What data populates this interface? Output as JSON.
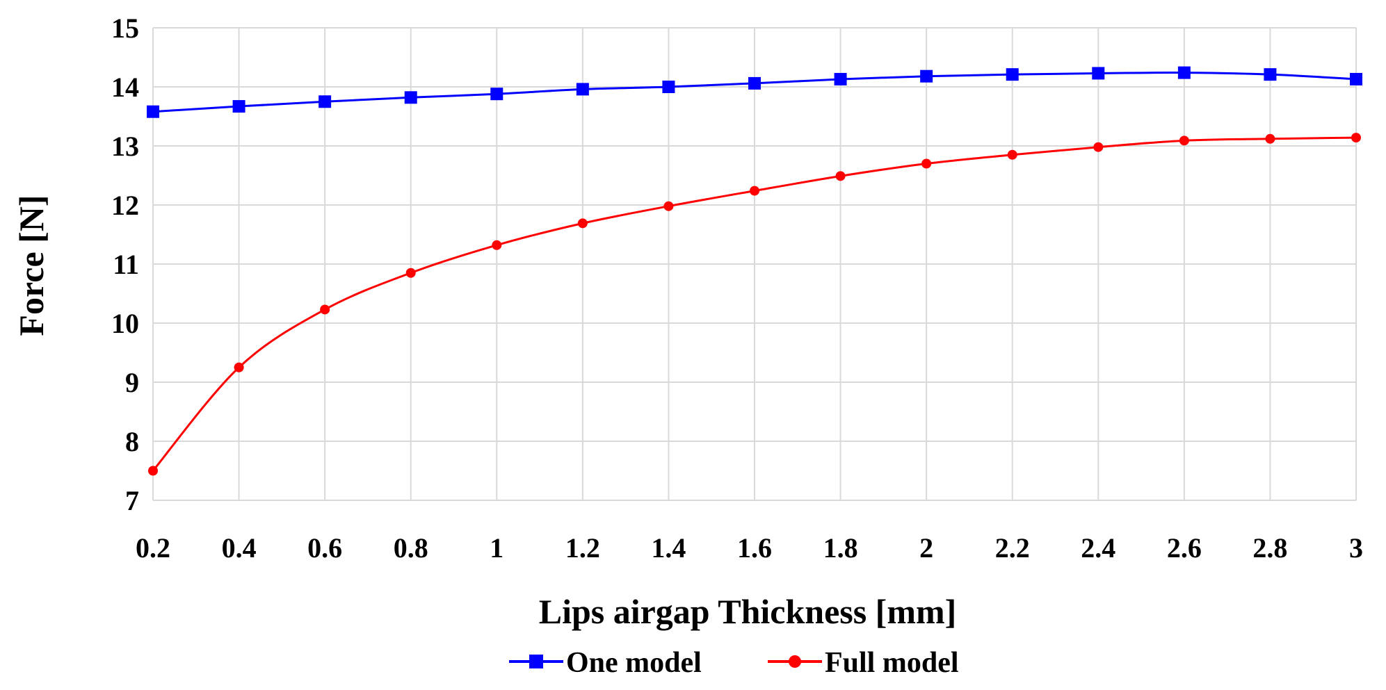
{
  "chart_data": {
    "type": "line",
    "title": "",
    "xlabel": "Lips airgap Thickness [mm]",
    "ylabel": "Force [N]",
    "x": [
      0.2,
      0.4,
      0.6,
      0.8,
      1.0,
      1.2,
      1.4,
      1.6,
      1.8,
      2.0,
      2.2,
      2.4,
      2.6,
      2.8,
      3.0
    ],
    "x_tick_labels": [
      "0.2",
      "0.4",
      "0.6",
      "0.8",
      "1",
      "1.2",
      "1.4",
      "1.6",
      "1.8",
      "2",
      "2.2",
      "2.4",
      "2.6",
      "2.8",
      "3"
    ],
    "y_tick_values": [
      7,
      8,
      9,
      10,
      11,
      12,
      13,
      14,
      15
    ],
    "y_tick_labels": [
      "7",
      "8",
      "9",
      "10",
      "11",
      "12",
      "13",
      "14",
      "15"
    ],
    "xlim": [
      0.2,
      3.0
    ],
    "ylim": [
      7,
      15
    ],
    "grid": true,
    "legend_position": "bottom",
    "series": [
      {
        "name": "One model",
        "color": "#0000ff",
        "marker": "square",
        "values": [
          13.58,
          13.67,
          13.75,
          13.82,
          13.88,
          13.96,
          14.0,
          14.06,
          14.13,
          14.18,
          14.21,
          14.23,
          14.24,
          14.21,
          14.13
        ]
      },
      {
        "name": "Full model",
        "color": "#ff0000",
        "marker": "circle",
        "values": [
          7.5,
          9.25,
          10.23,
          10.85,
          11.32,
          11.69,
          11.98,
          12.24,
          12.49,
          12.7,
          12.85,
          12.98,
          13.09,
          13.12,
          13.14
        ]
      }
    ]
  }
}
